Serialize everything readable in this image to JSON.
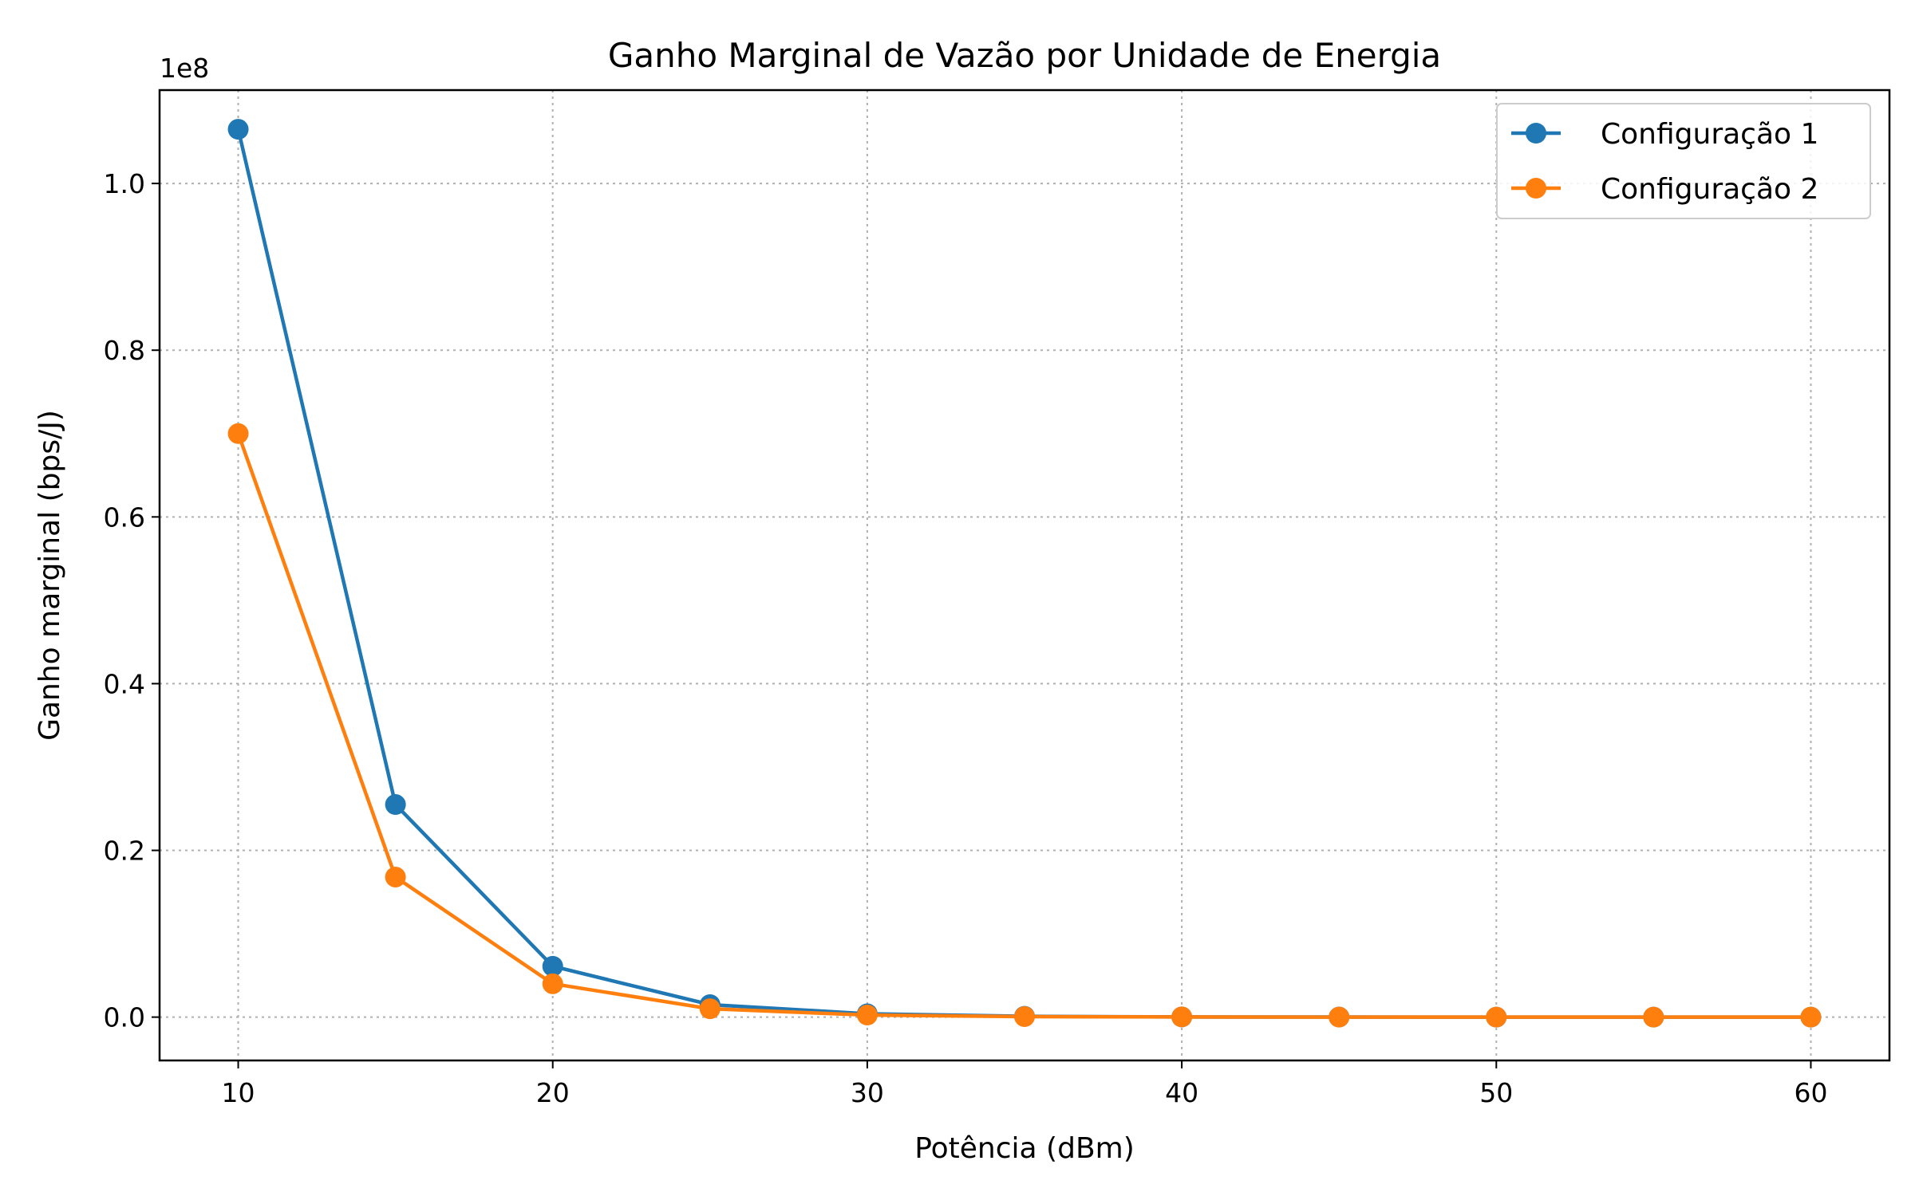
{
  "chart_data": {
    "type": "line",
    "title": "Ganho Marginal de Vazão por Unidade de Energia",
    "xlabel": "Potência (dBm)",
    "ylabel": "Ganho marginal (bps/J)",
    "y_offset_label": "1e8",
    "x": [
      10,
      15,
      20,
      25,
      30,
      35,
      40,
      45,
      50,
      55,
      60
    ],
    "xlim": [
      7.5,
      62.5
    ],
    "ylim": [
      -0.052,
      1.112
    ],
    "x_ticks": [
      "10",
      "20",
      "30",
      "40",
      "50",
      "60"
    ],
    "x_tick_values": [
      10,
      20,
      30,
      40,
      50,
      60
    ],
    "y_ticks": [
      "0.0",
      "0.2",
      "0.4",
      "0.6",
      "0.8",
      "1.0"
    ],
    "y_tick_values": [
      0.0,
      0.2,
      0.4,
      0.6,
      0.8,
      1.0
    ],
    "grid": true,
    "legend_position": "top-right",
    "series": [
      {
        "name": "Configuração 1",
        "color": "#1f77b4",
        "values": [
          1.065,
          0.255,
          0.061,
          0.015,
          0.004,
          0.001,
          0.0002,
          0.0001,
          0.0,
          0.0,
          0.0
        ]
      },
      {
        "name": "Configuração 2",
        "color": "#ff7f0e",
        "values": [
          0.7,
          0.168,
          0.04,
          0.01,
          0.0025,
          0.0006,
          0.0002,
          0.0,
          0.0,
          0.0,
          0.0
        ]
      }
    ]
  }
}
